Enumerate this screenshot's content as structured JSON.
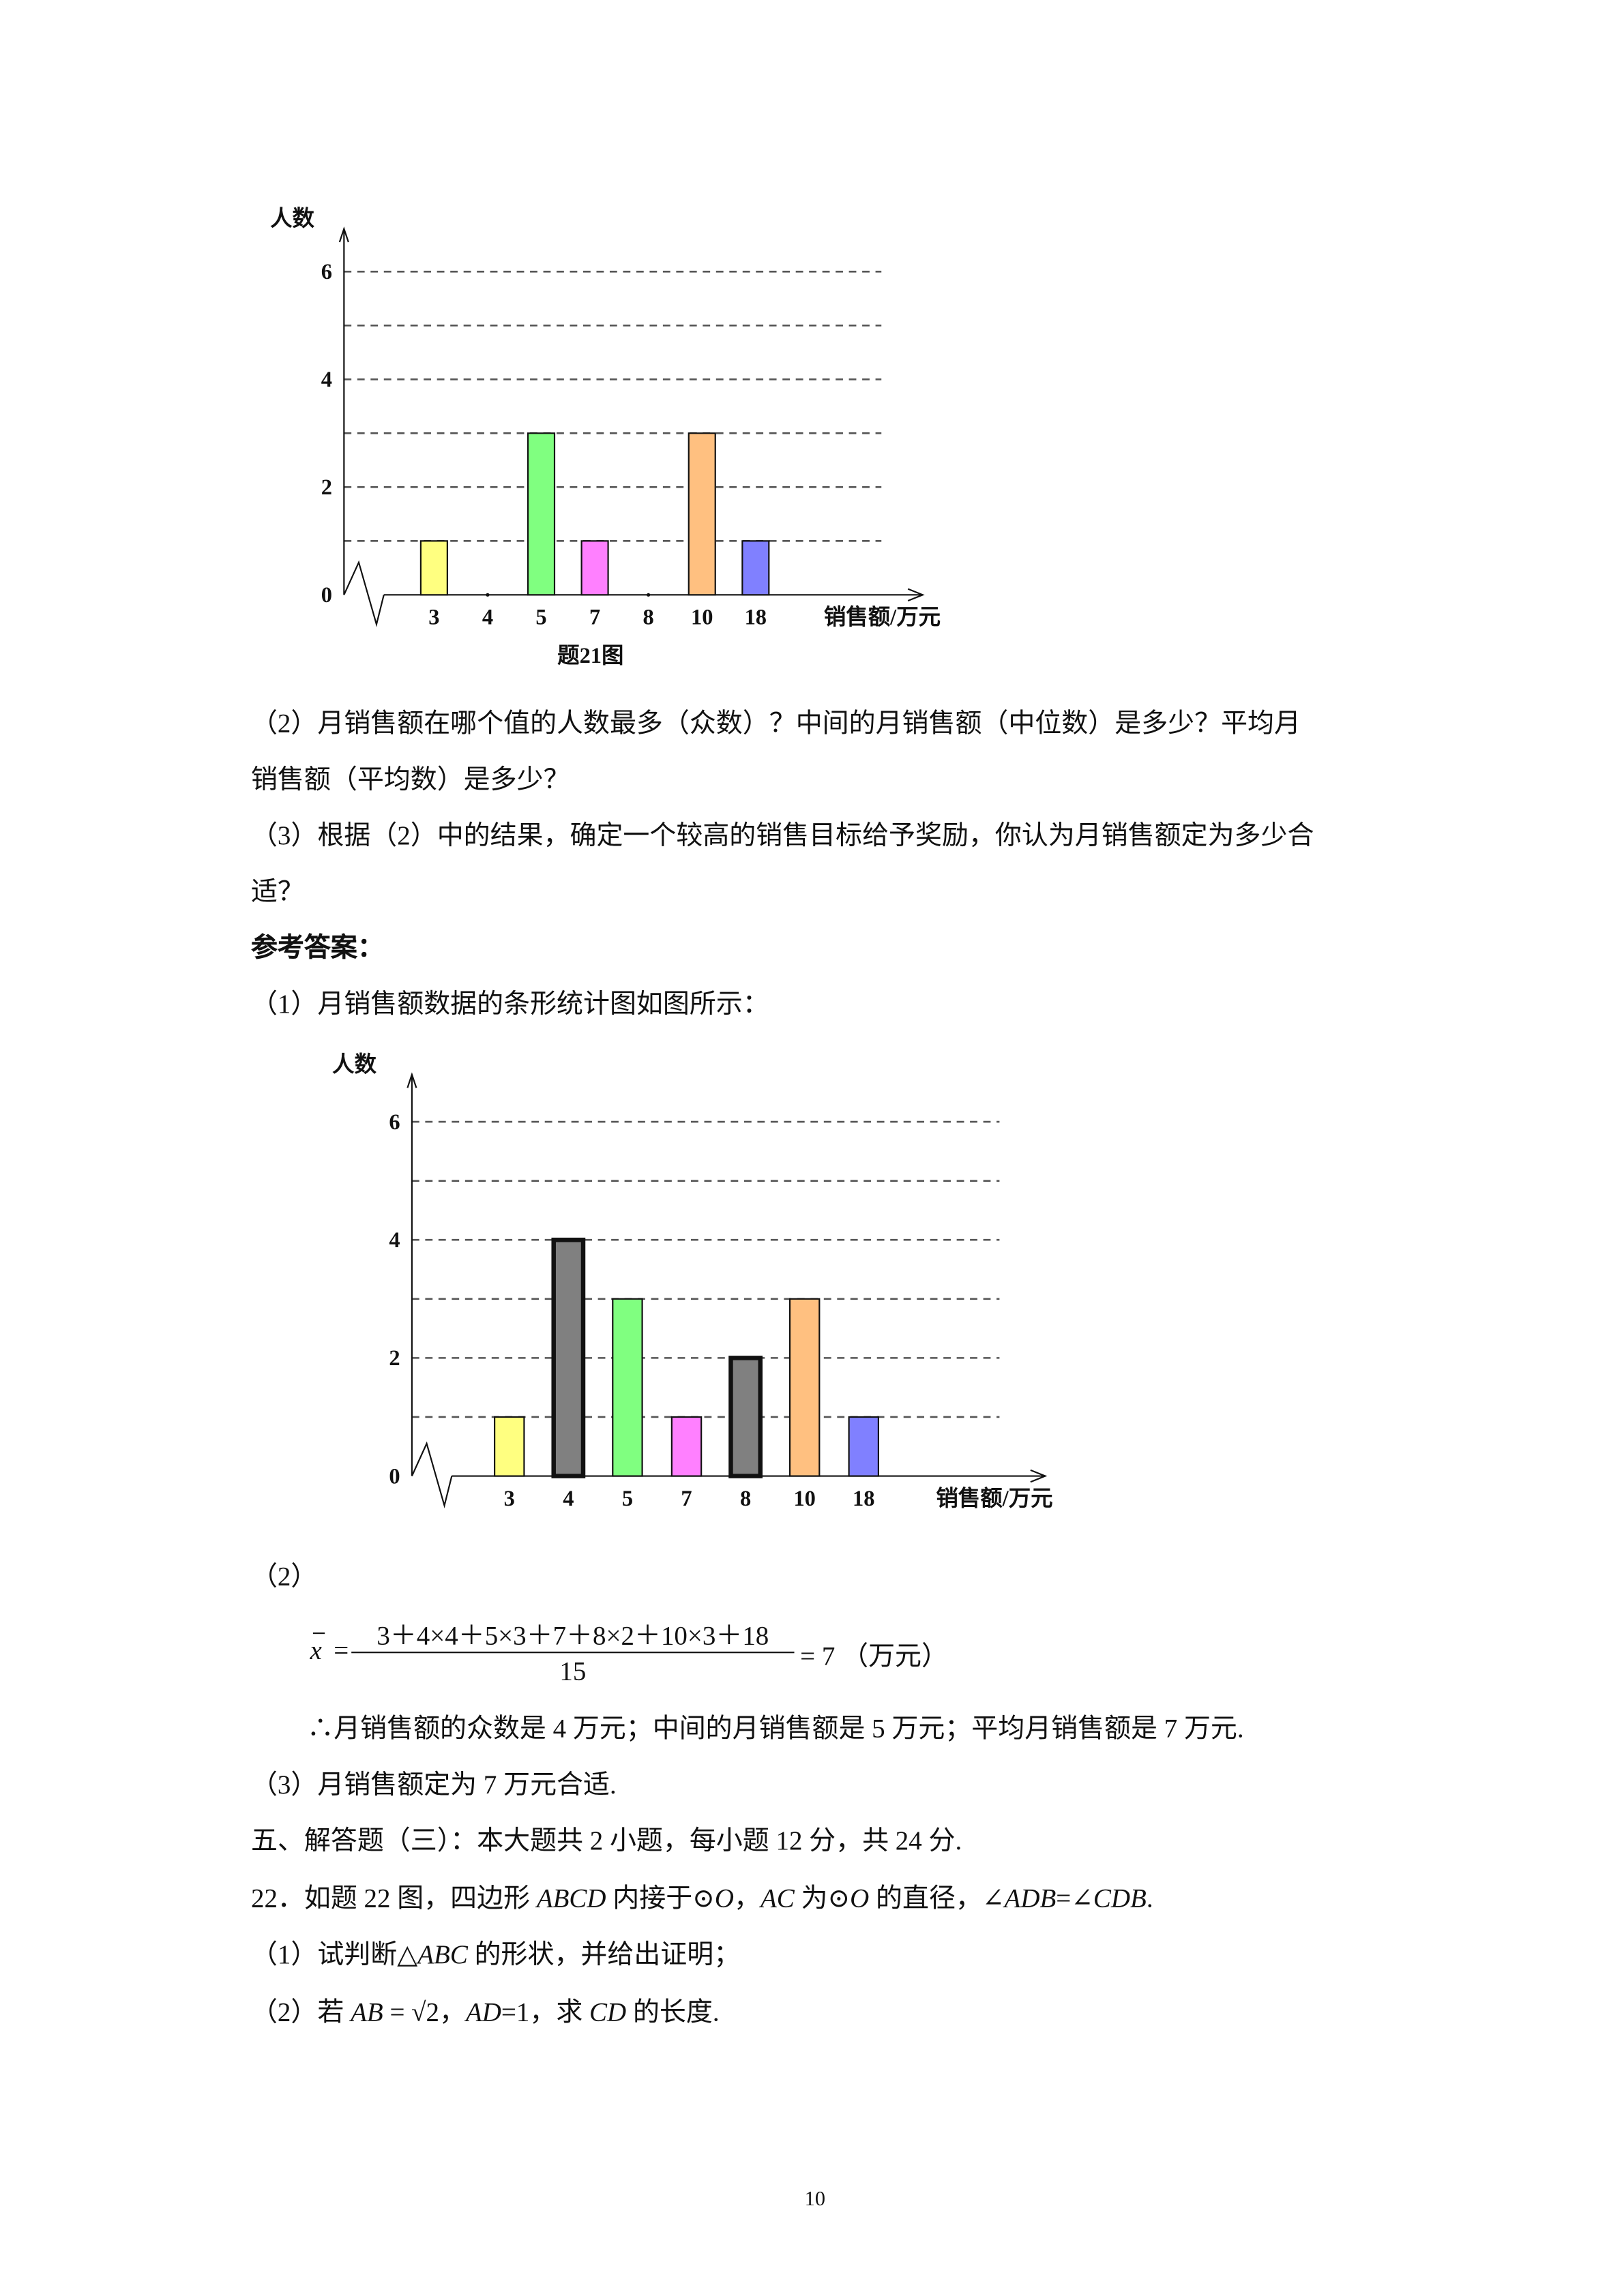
{
  "chart_data": [
    {
      "type": "bar",
      "title": "",
      "caption": "题21图",
      "ylabel": "人数",
      "xlabel": "销售额/万元",
      "categories": [
        "3",
        "4",
        "5",
        "7",
        "8",
        "10",
        "18"
      ],
      "values": [
        1,
        0,
        3,
        1,
        0,
        3,
        1
      ],
      "colors": [
        "#ffff80",
        "#808080",
        "#80ff80",
        "#ff80ff",
        "#808080",
        "#ffc080",
        "#8080ff"
      ],
      "ylim": [
        0,
        6
      ],
      "yticks": [
        "0",
        "2",
        "4",
        "6"
      ],
      "grid": "dashed horizontal at every 1",
      "axis_break": true
    },
    {
      "type": "bar",
      "title": "",
      "ylabel": "人数",
      "xlabel": "销售额/万元",
      "categories": [
        "3",
        "4",
        "5",
        "7",
        "8",
        "10",
        "18"
      ],
      "values": [
        1,
        4,
        3,
        1,
        2,
        3,
        1
      ],
      "colors": [
        "#ffff80",
        "#808080",
        "#80ff80",
        "#ff80ff",
        "#808080",
        "#ffc080",
        "#8080ff"
      ],
      "ylim": [
        0,
        6
      ],
      "yticks": [
        "0",
        "2",
        "4",
        "6"
      ],
      "grid": "dashed horizontal at every 1",
      "axis_break": true
    }
  ],
  "text": {
    "q2_line1": "（2）月销售额在哪个值的人数最多（众数）？中间的月销售额（中位数）是多少？平均月",
    "q2_line2": "销售额（平均数）是多少？",
    "q3_line1": "（3）根据（2）中的结果，确定一个较高的销售目标给予奖励，你认为月销售额定为多少合",
    "q3_line2": "适？",
    "answer_heading": "参考答案：",
    "a1": "（1）月销售额数据的条形统计图如图所示：",
    "a2_label": "（2）",
    "formula": {
      "lhs": "x",
      "eq": "=",
      "numerator": "3＋4×4＋5×3＋7＋8×2＋10×3＋18",
      "denominator": "15",
      "result": "= 7 （万元）"
    },
    "a2_conclusion": "∴月销售额的众数是 4 万元；中间的月销售额是 5 万元；平均月销售额是 7 万元.",
    "a3": "（3）月销售额定为 7 万元合适.",
    "section5": "五、解答题（三）：本大题共 2 小题，每小题 12 分，共 24 分.",
    "q22": [
      "22．如题 22 图，四边形 ",
      "ABCD",
      " 内接于⊙",
      "O",
      "，",
      "AC",
      " 为⊙",
      "O",
      " 的直径，∠",
      "ADB",
      "=∠",
      "CDB",
      "."
    ],
    "q22_1": [
      "（1）试判断△",
      "ABC",
      " 的形状，并给出证明；"
    ],
    "q22_2": [
      "（2）若 ",
      "AB",
      " = √2，",
      "AD",
      "=1，求 ",
      "CD",
      " 的长度."
    ],
    "page_number": "10"
  }
}
